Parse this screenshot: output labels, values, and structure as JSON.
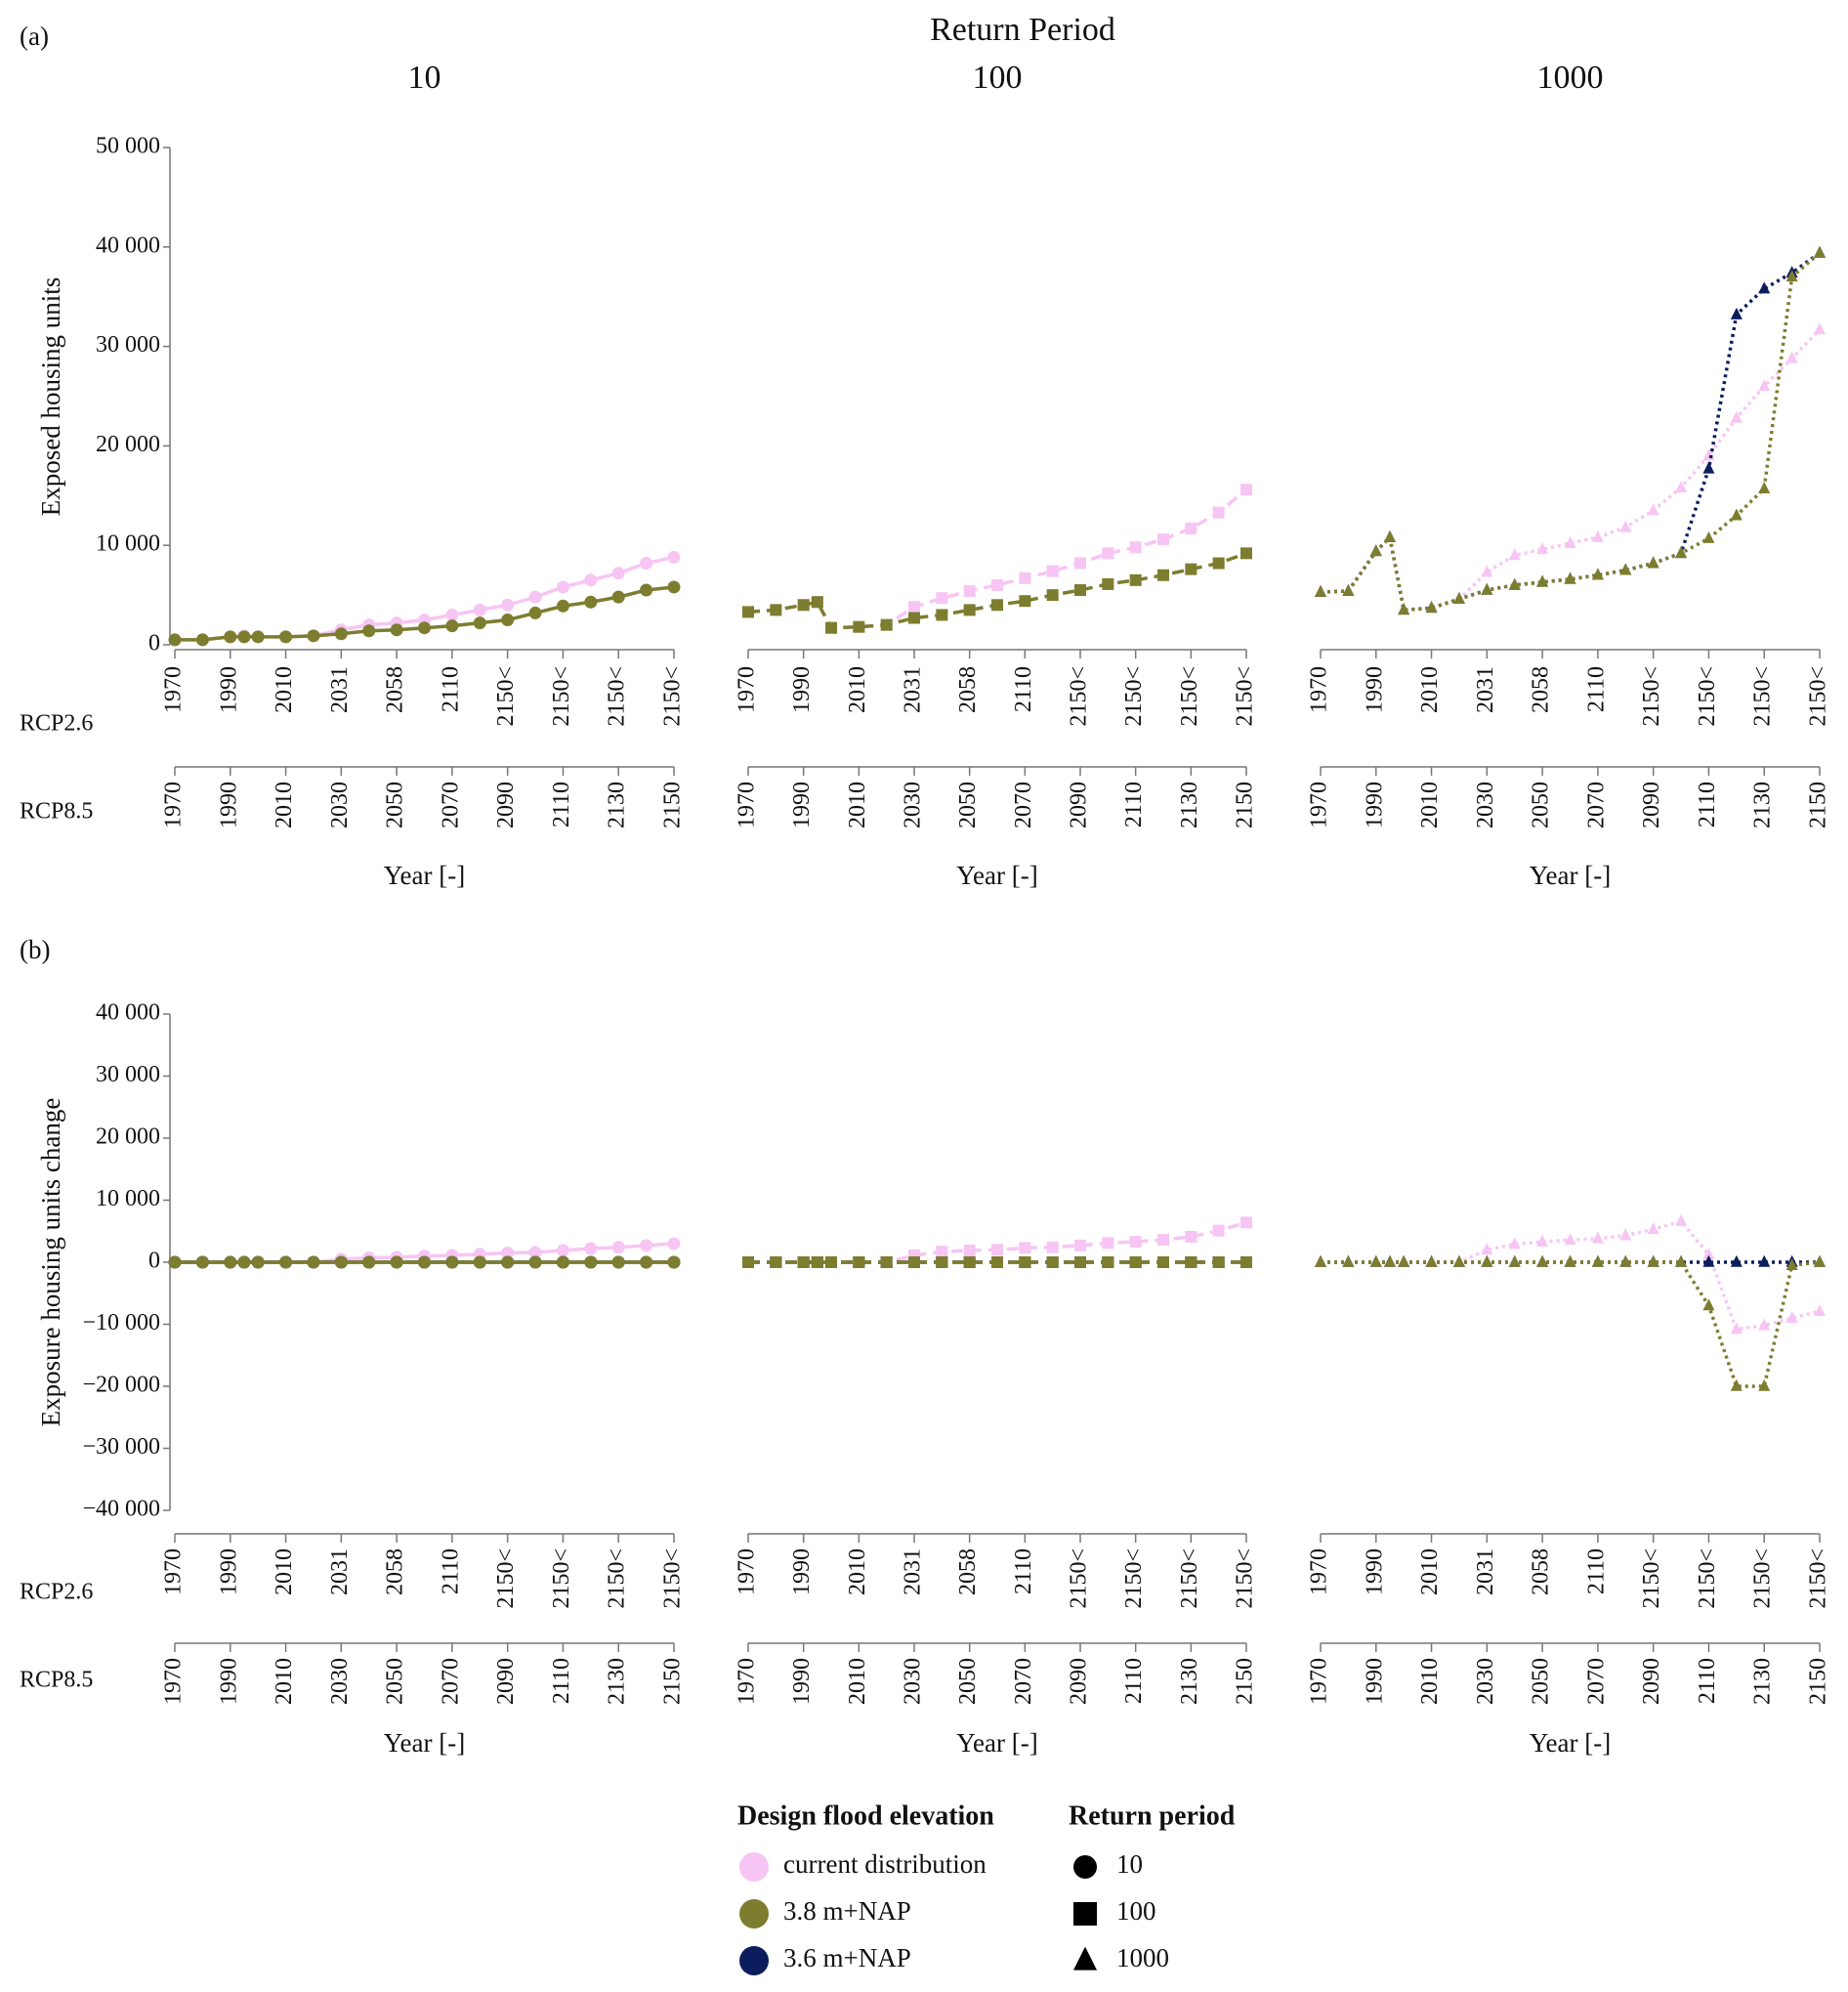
{
  "header": "Return Period",
  "legend": {
    "elevation_title": "Design flood elevation",
    "period_title": "Return period",
    "periods": [
      {
        "label": "10",
        "marker": "circle"
      },
      {
        "label": "100",
        "marker": "square"
      },
      {
        "label": "1000",
        "marker": "triangle"
      }
    ]
  },
  "chart_data": [
    {
      "type": "line",
      "panel_label": "(a)",
      "title": "10",
      "ylabel": "Exposed housing units",
      "xlabel": "Year [-]",
      "row_labels": [
        "RCP2.6",
        "RCP8.5"
      ],
      "marker": "circle",
      "line_style": "solid",
      "x": [
        1970,
        1980,
        1990,
        1995,
        2000,
        2010,
        2020,
        2030,
        2040,
        2050,
        2060,
        2070,
        2080,
        2090,
        2100,
        2110,
        2120,
        2130,
        2140,
        2150
      ],
      "xlim": [
        1970,
        2150
      ],
      "xticks": [
        1970,
        1990,
        2010,
        2030,
        2050,
        2070,
        2090,
        2110,
        2130,
        2150
      ],
      "xticks_rcp26": [
        {
          "value": 1970,
          "label": "1970"
        },
        {
          "value": 1990,
          "label": "1990"
        },
        {
          "value": 2010,
          "label": "2010"
        },
        {
          "value": 2030,
          "label": "2031"
        },
        {
          "value": 2050,
          "label": "2058"
        },
        {
          "value": 2070,
          "label": "2110"
        },
        {
          "value": 2090,
          "label": "2150<"
        },
        {
          "value": 2110,
          "label": "2150<"
        },
        {
          "value": 2130,
          "label": "2150<"
        },
        {
          "value": 2150,
          "label": "2150<"
        }
      ],
      "ylim": [
        0,
        50000
      ],
      "yticks": [
        0,
        {
          "value": 10000,
          "label": "10 000"
        },
        {
          "value": 20000,
          "label": "20 000"
        },
        {
          "value": 30000,
          "label": "30 000"
        },
        {
          "value": 40000,
          "label": "40 000"
        },
        {
          "value": 50000,
          "label": "50 000"
        }
      ],
      "series": [
        {
          "name": "current distribution",
          "color": "#f7c5f3",
          "values": [
            500,
            500,
            800,
            900,
            800,
            800,
            900,
            1500,
            2000,
            2200,
            2500,
            3000,
            3500,
            4000,
            4800,
            5800,
            6500,
            7200,
            8200,
            8800
          ]
        },
        {
          "name": "3.8 m+NAP",
          "color": "#7d7d30",
          "values": [
            500,
            500,
            800,
            800,
            800,
            800,
            900,
            1100,
            1400,
            1500,
            1700,
            1900,
            2200,
            2500,
            3200,
            3900,
            4300,
            4800,
            5500,
            5800
          ]
        }
      ]
    },
    {
      "type": "line",
      "title": "100",
      "xlabel": "Year [-]",
      "marker": "square",
      "line_style": "dashed",
      "x": [
        1970,
        1980,
        1990,
        1995,
        2000,
        2010,
        2020,
        2030,
        2040,
        2050,
        2060,
        2070,
        2080,
        2090,
        2100,
        2110,
        2120,
        2130,
        2140,
        2150
      ],
      "xlim": [
        1970,
        2150
      ],
      "xticks": [
        1970,
        1990,
        2010,
        2030,
        2050,
        2070,
        2090,
        2110,
        2130,
        2150
      ],
      "xticks_rcp26": [
        {
          "value": 1970,
          "label": "1970"
        },
        {
          "value": 1990,
          "label": "1990"
        },
        {
          "value": 2010,
          "label": "2010"
        },
        {
          "value": 2030,
          "label": "2031"
        },
        {
          "value": 2050,
          "label": "2058"
        },
        {
          "value": 2070,
          "label": "2110"
        },
        {
          "value": 2090,
          "label": "2150<"
        },
        {
          "value": 2110,
          "label": "2150<"
        },
        {
          "value": 2130,
          "label": "2150<"
        },
        {
          "value": 2150,
          "label": "2150<"
        }
      ],
      "ylim": [
        0,
        50000
      ],
      "series": [
        {
          "name": "current distribution",
          "color": "#f7c5f3",
          "values": [
            3300,
            3500,
            4000,
            4300,
            1700,
            1800,
            2000,
            3800,
            4700,
            5400,
            6000,
            6700,
            7400,
            8200,
            9200,
            9800,
            10600,
            11700,
            13300,
            15600
          ]
        },
        {
          "name": "3.8 m+NAP",
          "color": "#7d7d30",
          "values": [
            3300,
            3500,
            4000,
            4300,
            1700,
            1800,
            2000,
            2700,
            3000,
            3500,
            4000,
            4400,
            5000,
            5500,
            6100,
            6500,
            7000,
            7600,
            8200,
            9200
          ]
        }
      ]
    },
    {
      "type": "line",
      "title": "1000",
      "xlabel": "Year [-]",
      "marker": "triangle",
      "line_style": "dotted",
      "x": [
        1970,
        1980,
        1990,
        1995,
        2000,
        2010,
        2020,
        2030,
        2040,
        2050,
        2060,
        2070,
        2080,
        2090,
        2100,
        2110,
        2120,
        2130,
        2140,
        2150
      ],
      "xlim": [
        1970,
        2150
      ],
      "xticks": [
        1970,
        1990,
        2010,
        2030,
        2050,
        2070,
        2090,
        2110,
        2130,
        2150
      ],
      "xticks_rcp26": [
        {
          "value": 1970,
          "label": "1970"
        },
        {
          "value": 1990,
          "label": "1990"
        },
        {
          "value": 2010,
          "label": "2010"
        },
        {
          "value": 2030,
          "label": "2031"
        },
        {
          "value": 2050,
          "label": "2058"
        },
        {
          "value": 2070,
          "label": "2110"
        },
        {
          "value": 2090,
          "label": "2150<"
        },
        {
          "value": 2110,
          "label": "2150<"
        },
        {
          "value": 2130,
          "label": "2150<"
        },
        {
          "value": 2150,
          "label": "2150<"
        }
      ],
      "ylim": [
        0,
        50000
      ],
      "series": [
        {
          "name": "current distribution",
          "color": "#f7c5f3",
          "values": [
            5300,
            5400,
            9400,
            10800,
            3500,
            3700,
            4600,
            7300,
            9000,
            9600,
            10200,
            10800,
            11800,
            13500,
            15800,
            19000,
            22800,
            26000,
            28800,
            31700
          ]
        },
        {
          "name": "3.8 m+NAP",
          "color": "#7d7d30",
          "values": [
            5300,
            5400,
            9400,
            10800,
            3500,
            3700,
            4600,
            5500,
            6000,
            6300,
            6600,
            7000,
            7500,
            8200,
            9200,
            10700,
            13000,
            15700,
            37000,
            39400
          ]
        },
        {
          "name": "3.6 m+NAP",
          "color": "#0b1d5c",
          "values": [
            5300,
            5400,
            9400,
            10800,
            3500,
            3700,
            4600,
            5500,
            6000,
            6300,
            6600,
            7000,
            7500,
            8200,
            9200,
            17700,
            33200,
            35800,
            37400,
            39400
          ]
        }
      ]
    },
    {
      "type": "line",
      "panel_label": "(b)",
      "ylabel": "Exposure housing units change",
      "xlabel": "Year [-]",
      "row_labels": [
        "RCP2.6",
        "RCP8.5"
      ],
      "marker": "circle",
      "line_style": "solid",
      "x": [
        1970,
        1980,
        1990,
        1995,
        2000,
        2010,
        2020,
        2030,
        2040,
        2050,
        2060,
        2070,
        2080,
        2090,
        2100,
        2110,
        2120,
        2130,
        2140,
        2150
      ],
      "xlim": [
        1970,
        2150
      ],
      "xticks": [
        1970,
        1990,
        2010,
        2030,
        2050,
        2070,
        2090,
        2110,
        2130,
        2150
      ],
      "xticks_rcp26": [
        {
          "value": 1970,
          "label": "1970"
        },
        {
          "value": 1990,
          "label": "1990"
        },
        {
          "value": 2010,
          "label": "2010"
        },
        {
          "value": 2030,
          "label": "2031"
        },
        {
          "value": 2050,
          "label": "2058"
        },
        {
          "value": 2070,
          "label": "2110"
        },
        {
          "value": 2090,
          "label": "2150<"
        },
        {
          "value": 2110,
          "label": "2150<"
        },
        {
          "value": 2130,
          "label": "2150<"
        },
        {
          "value": 2150,
          "label": "2150<"
        }
      ],
      "ylim": [
        -40000,
        40000
      ],
      "yticks": [
        {
          "value": -40000,
          "label": "−40 000"
        },
        {
          "value": -30000,
          "label": "−30 000"
        },
        {
          "value": -20000,
          "label": "−20 000"
        },
        {
          "value": -10000,
          "label": "−10 000"
        },
        0,
        {
          "value": 10000,
          "label": "10 000"
        },
        {
          "value": 20000,
          "label": "20 000"
        },
        {
          "value": 30000,
          "label": "30 000"
        },
        {
          "value": 40000,
          "label": "40 000"
        }
      ],
      "series": [
        {
          "name": "current distribution",
          "color": "#f7c5f3",
          "values": [
            0,
            0,
            0,
            0,
            0,
            0,
            0,
            500,
            700,
            800,
            1000,
            1100,
            1300,
            1500,
            1600,
            1900,
            2200,
            2400,
            2700,
            3000
          ]
        },
        {
          "name": "3.8 m+NAP",
          "color": "#7d7d30",
          "values": [
            0,
            0,
            0,
            0,
            0,
            0,
            0,
            0,
            0,
            0,
            0,
            0,
            0,
            0,
            0,
            0,
            0,
            0,
            0,
            0
          ]
        },
        {
          "name": "3.6 m+NAP",
          "color": "#0b1d5c",
          "values": [
            0,
            0,
            0,
            0,
            0,
            0,
            0,
            0,
            0,
            0,
            0,
            0,
            0,
            0,
            0,
            0,
            0,
            0,
            0,
            0
          ]
        }
      ]
    },
    {
      "type": "line",
      "xlabel": "Year [-]",
      "marker": "square",
      "line_style": "dashed",
      "x": [
        1970,
        1980,
        1990,
        1995,
        2000,
        2010,
        2020,
        2030,
        2040,
        2050,
        2060,
        2070,
        2080,
        2090,
        2100,
        2110,
        2120,
        2130,
        2140,
        2150
      ],
      "xlim": [
        1970,
        2150
      ],
      "xticks": [
        1970,
        1990,
        2010,
        2030,
        2050,
        2070,
        2090,
        2110,
        2130,
        2150
      ],
      "xticks_rcp26": [
        {
          "value": 1970,
          "label": "1970"
        },
        {
          "value": 1990,
          "label": "1990"
        },
        {
          "value": 2010,
          "label": "2010"
        },
        {
          "value": 2030,
          "label": "2031"
        },
        {
          "value": 2050,
          "label": "2058"
        },
        {
          "value": 2070,
          "label": "2110"
        },
        {
          "value": 2090,
          "label": "2150<"
        },
        {
          "value": 2110,
          "label": "2150<"
        },
        {
          "value": 2130,
          "label": "2150<"
        },
        {
          "value": 2150,
          "label": "2150<"
        }
      ],
      "ylim": [
        -40000,
        40000
      ],
      "series": [
        {
          "name": "current distribution",
          "color": "#f7c5f3",
          "values": [
            0,
            0,
            0,
            0,
            0,
            0,
            0,
            1100,
            1700,
            1900,
            2000,
            2300,
            2400,
            2700,
            3100,
            3300,
            3600,
            4100,
            5100,
            6400
          ]
        },
        {
          "name": "3.8 m+NAP",
          "color": "#7d7d30",
          "values": [
            0,
            0,
            0,
            0,
            0,
            0,
            0,
            0,
            0,
            0,
            0,
            0,
            0,
            0,
            0,
            0,
            0,
            0,
            0,
            0
          ]
        },
        {
          "name": "3.6 m+NAP",
          "color": "#0b1d5c",
          "values": [
            0,
            0,
            0,
            0,
            0,
            0,
            0,
            0,
            0,
            0,
            0,
            0,
            0,
            0,
            0,
            0,
            0,
            0,
            0,
            0
          ]
        }
      ]
    },
    {
      "type": "line",
      "xlabel": "Year [-]",
      "marker": "triangle",
      "line_style": "dotted",
      "x": [
        1970,
        1980,
        1990,
        1995,
        2000,
        2010,
        2020,
        2030,
        2040,
        2050,
        2060,
        2070,
        2080,
        2090,
        2100,
        2110,
        2120,
        2130,
        2140,
        2150
      ],
      "xlim": [
        1970,
        2150
      ],
      "xticks": [
        1970,
        1990,
        2010,
        2030,
        2050,
        2070,
        2090,
        2110,
        2130,
        2150
      ],
      "xticks_rcp26": [
        {
          "value": 1970,
          "label": "1970"
        },
        {
          "value": 1990,
          "label": "1990"
        },
        {
          "value": 2010,
          "label": "2010"
        },
        {
          "value": 2030,
          "label": "2031"
        },
        {
          "value": 2050,
          "label": "2058"
        },
        {
          "value": 2070,
          "label": "2110"
        },
        {
          "value": 2090,
          "label": "2150<"
        },
        {
          "value": 2110,
          "label": "2150<"
        },
        {
          "value": 2130,
          "label": "2150<"
        },
        {
          "value": 2150,
          "label": "2150<"
        }
      ],
      "ylim": [
        -40000,
        40000
      ],
      "series": [
        {
          "name": "current distribution",
          "color": "#f7c5f3",
          "values": [
            0,
            0,
            0,
            0,
            0,
            0,
            0,
            2000,
            2900,
            3300,
            3600,
            3800,
            4300,
            5300,
            6600,
            1200,
            -10800,
            -10200,
            -9000,
            -7900
          ]
        },
        {
          "name": "3.8 m+NAP",
          "color": "#7d7d30",
          "values": [
            0,
            0,
            0,
            0,
            0,
            0,
            0,
            0,
            0,
            0,
            0,
            0,
            0,
            0,
            0,
            -7000,
            -20000,
            -20000,
            -500,
            0
          ]
        },
        {
          "name": "3.6 m+NAP",
          "color": "#0b1d5c",
          "values": [
            0,
            0,
            0,
            0,
            0,
            0,
            0,
            0,
            0,
            0,
            0,
            0,
            0,
            0,
            0,
            0,
            0,
            0,
            0,
            0
          ]
        }
      ]
    }
  ]
}
